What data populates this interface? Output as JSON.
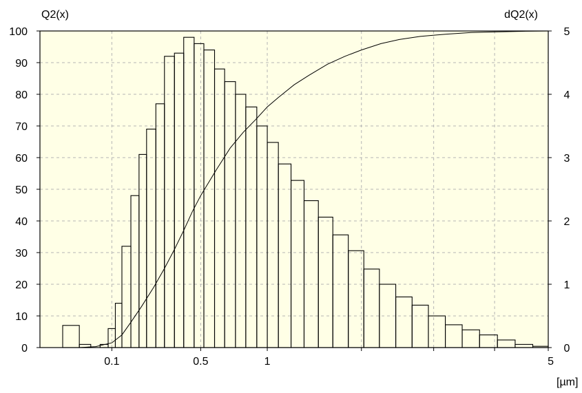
{
  "chart_data": {
    "type": "bar",
    "left_axis_title": "Q2(x)",
    "right_axis_title": "dQ2(x)",
    "x_unit": "[µm]",
    "xlim": [
      0,
      5
    ],
    "x_scale": "sqrt",
    "ylim_left": [
      0,
      100
    ],
    "ylim_right": [
      0,
      5
    ],
    "left_ticks": [
      "0",
      "10",
      "20",
      "30",
      "40",
      "50",
      "60",
      "70",
      "80",
      "90",
      "100"
    ],
    "right_ticks": [
      "0",
      "1",
      "2",
      "3",
      "4",
      "5"
    ],
    "x_tick_labels": [
      "0.1",
      "0.5",
      "1",
      "5"
    ],
    "grid": true,
    "background": "#ffffe6",
    "histogram": {
      "name": "dQ2(x)",
      "edges": [
        0.01,
        0.03,
        0.05,
        0.07,
        0.09,
        0.11,
        0.13,
        0.16,
        0.19,
        0.22,
        0.26,
        0.3,
        0.35,
        0.4,
        0.46,
        0.52,
        0.59,
        0.66,
        0.74,
        0.82,
        0.91,
        1.0,
        1.1,
        1.22,
        1.35,
        1.5,
        1.66,
        1.84,
        2.03,
        2.23,
        2.45,
        2.68,
        2.92,
        3.18,
        3.45,
        3.74,
        4.05,
        4.37,
        4.7,
        5.0
      ],
      "values": [
        0.35,
        0.05,
        0.0,
        0.05,
        0.3,
        0.7,
        1.6,
        2.4,
        3.05,
        3.45,
        3.85,
        4.6,
        4.65,
        4.9,
        4.8,
        4.7,
        4.4,
        4.2,
        4.0,
        3.8,
        3.5,
        3.24,
        2.9,
        2.64,
        2.32,
        2.06,
        1.78,
        1.53,
        1.24,
        1.0,
        0.8,
        0.67,
        0.5,
        0.36,
        0.28,
        0.2,
        0.12,
        0.05,
        0.02
      ]
    },
    "cumulative": {
      "name": "Q2(x)",
      "x": [
        0.03,
        0.06,
        0.1,
        0.13,
        0.16,
        0.2,
        0.25,
        0.3,
        0.35,
        0.4,
        0.45,
        0.5,
        0.6,
        0.7,
        0.8,
        0.9,
        1.0,
        1.1,
        1.25,
        1.4,
        1.6,
        1.8,
        2.0,
        2.25,
        2.5,
        2.8,
        3.2,
        3.6,
        4.0,
        4.5,
        5.0
      ],
      "y": [
        0,
        0.3,
        1.5,
        4,
        8,
        13,
        19,
        25,
        31,
        37,
        43,
        48,
        56,
        63,
        68,
        72,
        76,
        79,
        83,
        86,
        89.5,
        92,
        94,
        96,
        97.3,
        98.3,
        99,
        99.5,
        99.7,
        99.9,
        100
      ]
    }
  }
}
